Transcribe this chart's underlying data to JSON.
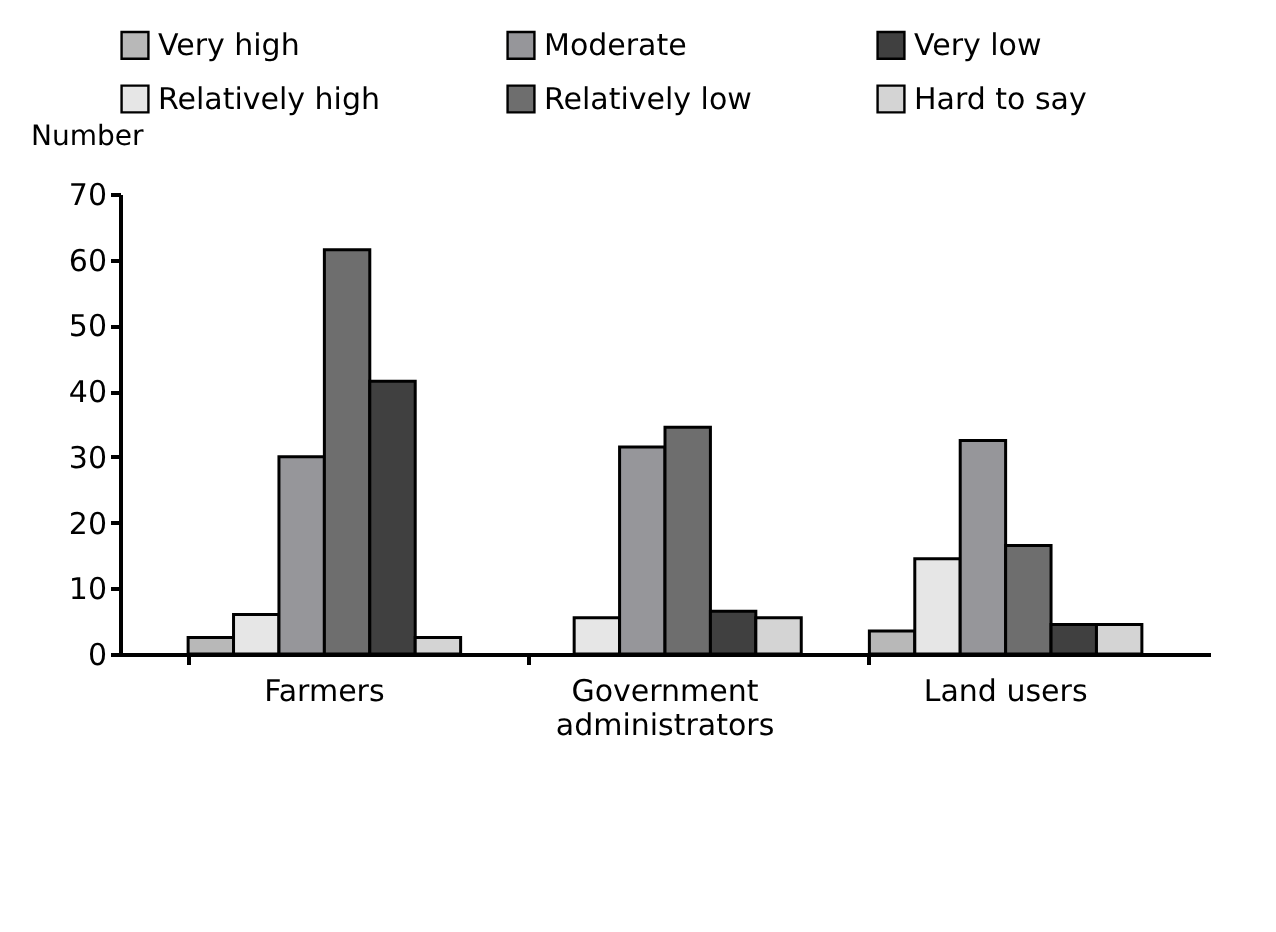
{
  "chart_data": {
    "type": "bar",
    "ylabel": "Number",
    "categories": [
      "Farmers",
      "Government administrators",
      "Land users"
    ],
    "series": [
      {
        "name": "Very high",
        "color": "#b8b8b8",
        "values": [
          2.5,
          null,
          3.5
        ]
      },
      {
        "name": "Relatively high",
        "color": "#e6e6e6",
        "values": [
          6,
          5.5,
          14.5
        ]
      },
      {
        "name": "Moderate",
        "color": "#96969a",
        "values": [
          30,
          31.5,
          32.5
        ]
      },
      {
        "name": "Relatively low",
        "color": "#6e6e6e",
        "values": [
          61.5,
          34.5,
          16.5
        ]
      },
      {
        "name": "Very low",
        "color": "#404040",
        "values": [
          41.5,
          6.5,
          4.5
        ]
      },
      {
        "name": "Hard to say",
        "color": "#d4d4d4",
        "values": [
          2.5,
          5.5,
          4.5
        ]
      }
    ],
    "ylim": [
      0,
      70
    ],
    "yticks": [
      0,
      10,
      20,
      30,
      40,
      50,
      60,
      70
    ],
    "grid": false,
    "legend": "top"
  }
}
